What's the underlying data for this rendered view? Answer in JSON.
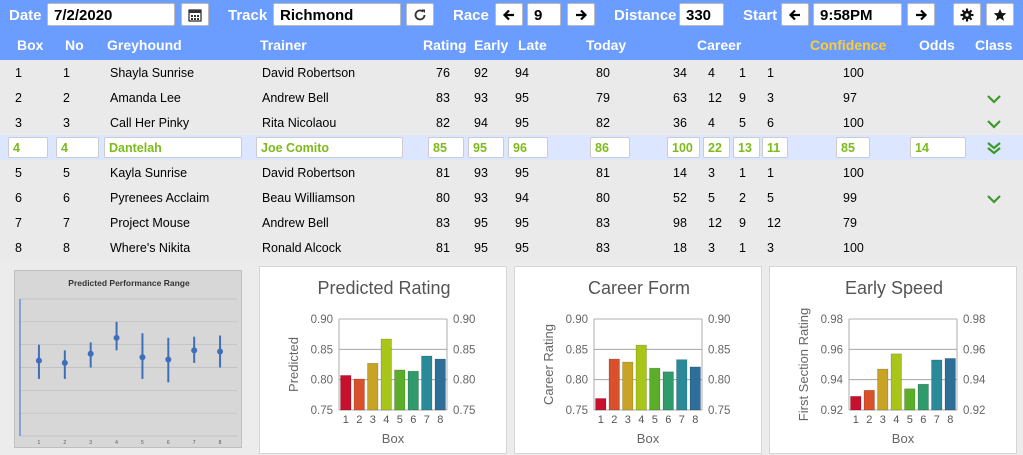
{
  "toolbar": {
    "date_label": "Date",
    "date_value": "7/2/2020",
    "track_label": "Track",
    "track_value": "Richmond",
    "race_label": "Race",
    "race_value": "9",
    "distance_label": "Distance",
    "distance_value": "330",
    "start_label": "Start",
    "start_value": "9:58PM",
    "icons": [
      "calendar-icon",
      "refresh-icon",
      "arrow-left-icon",
      "arrow-right-icon",
      "gear-icon",
      "star-icon"
    ]
  },
  "table": {
    "headers": {
      "box": "Box",
      "no": "No",
      "greyhound": "Greyhound",
      "trainer": "Trainer",
      "rating": "Rating",
      "early": "Early",
      "late": "Late",
      "today": "Today",
      "career": "Career",
      "confidence": "Confidence",
      "odds": "Odds",
      "class": "Class"
    },
    "rows": [
      {
        "box": "1",
        "no": "1",
        "greyhound": "Shayla Sunrise",
        "trainer": "David Robertson",
        "rating": "76",
        "early": "92",
        "late": "94",
        "today": "80",
        "c1": "34",
        "c2": "4",
        "c3": "1",
        "c4": "1",
        "confidence": "100",
        "odds": "",
        "class": ""
      },
      {
        "box": "2",
        "no": "2",
        "greyhound": "Amanda Lee",
        "trainer": "Andrew Bell",
        "rating": "83",
        "early": "93",
        "late": "95",
        "today": "79",
        "c1": "63",
        "c2": "12",
        "c3": "9",
        "c4": "3",
        "confidence": "97",
        "odds": "",
        "class": "chevron"
      },
      {
        "box": "3",
        "no": "3",
        "greyhound": "Call Her Pinky",
        "trainer": "Rita Nicolaou",
        "rating": "82",
        "early": "94",
        "late": "95",
        "today": "82",
        "c1": "36",
        "c2": "4",
        "c3": "5",
        "c4": "6",
        "confidence": "100",
        "odds": "",
        "class": "chevron"
      },
      {
        "box": "4",
        "no": "4",
        "greyhound": "Dantelah",
        "trainer": "Joe Comito",
        "rating": "85",
        "early": "95",
        "late": "96",
        "today": "86",
        "c1": "100",
        "c2": "22",
        "c3": "13",
        "c4": "11",
        "confidence": "85",
        "odds": "14",
        "class": "double-chevron"
      },
      {
        "box": "5",
        "no": "5",
        "greyhound": "Kayla Sunrise",
        "trainer": "David Robertson",
        "rating": "81",
        "early": "93",
        "late": "95",
        "today": "81",
        "c1": "14",
        "c2": "3",
        "c3": "1",
        "c4": "1",
        "confidence": "100",
        "odds": "",
        "class": ""
      },
      {
        "box": "6",
        "no": "6",
        "greyhound": "Pyrenees Acclaim",
        "trainer": "Beau Williamson",
        "rating": "80",
        "early": "93",
        "late": "94",
        "today": "80",
        "c1": "52",
        "c2": "5",
        "c3": "2",
        "c4": "5",
        "confidence": "99",
        "odds": "",
        "class": "chevron"
      },
      {
        "box": "7",
        "no": "7",
        "greyhound": "Project Mouse",
        "trainer": "Andrew Bell",
        "rating": "83",
        "early": "95",
        "late": "95",
        "today": "83",
        "c1": "98",
        "c2": "12",
        "c3": "9",
        "c4": "12",
        "confidence": "79",
        "odds": "",
        "class": ""
      },
      {
        "box": "8",
        "no": "8",
        "greyhound": "Where's Nikita",
        "trainer": "Ronald Alcock",
        "rating": "81",
        "early": "95",
        "late": "95",
        "today": "83",
        "c1": "18",
        "c2": "3",
        "c3": "1",
        "c4": "3",
        "confidence": "100",
        "odds": "",
        "class": ""
      }
    ],
    "selected_row": 3,
    "colors": {
      "header": "#6b9cff",
      "confidence_header": "#ffcc33",
      "selected_text": "#7cbb1a",
      "chevron": "#3d9a2a"
    }
  },
  "chart_data": [
    {
      "type": "scatter",
      "title": "Predicted Performance Range",
      "categories": [
        "1",
        "2",
        "3",
        "4",
        "5",
        "6",
        "7",
        "8"
      ],
      "values": [
        0.806,
        0.804,
        0.812,
        0.826,
        0.809,
        0.807,
        0.815,
        0.814
      ],
      "ranges": [
        [
          0.79,
          0.82
        ],
        [
          0.79,
          0.815
        ],
        [
          0.8,
          0.822
        ],
        [
          0.815,
          0.84
        ],
        [
          0.79,
          0.83
        ],
        [
          0.787,
          0.826
        ],
        [
          0.804,
          0.827
        ],
        [
          0.8,
          0.828
        ]
      ],
      "ylim": [
        0.74,
        0.86
      ],
      "grid": true
    },
    {
      "type": "bar",
      "title": "Predicted Rating",
      "xlabel": "Box",
      "ylabel": "Predicted",
      "categories": [
        "1",
        "2",
        "3",
        "4",
        "5",
        "6",
        "7",
        "8"
      ],
      "values": [
        0.807,
        0.801,
        0.827,
        0.867,
        0.816,
        0.814,
        0.839,
        0.834
      ],
      "ylim": [
        0.75,
        0.9
      ],
      "yticks": [
        "0.90",
        "0.85",
        "0.80",
        "0.75"
      ],
      "grid": true
    },
    {
      "type": "bar",
      "title": "Career Form",
      "xlabel": "Box",
      "ylabel": "Career Rating",
      "categories": [
        "1",
        "2",
        "3",
        "4",
        "5",
        "6",
        "7",
        "8"
      ],
      "values": [
        0.769,
        0.834,
        0.829,
        0.857,
        0.819,
        0.813,
        0.833,
        0.821
      ],
      "ylim": [
        0.75,
        0.9
      ],
      "yticks": [
        "0.90",
        "0.85",
        "0.80",
        "0.75"
      ],
      "grid": true
    },
    {
      "type": "bar",
      "title": "Early Speed",
      "xlabel": "Box",
      "ylabel": "First Section Rating",
      "categories": [
        "1",
        "2",
        "3",
        "4",
        "5",
        "6",
        "7",
        "8"
      ],
      "values": [
        0.929,
        0.933,
        0.947,
        0.957,
        0.934,
        0.937,
        0.953,
        0.954
      ],
      "ylim": [
        0.92,
        0.98
      ],
      "yticks": [
        "0.98",
        "0.96",
        "0.94",
        "0.92"
      ],
      "grid": true
    }
  ],
  "bar_colors": [
    "#c8102e",
    "#d9502a",
    "#c9a326",
    "#a8c51a",
    "#5cae2a",
    "#2f9a6a",
    "#2a8a9a",
    "#2e6f9a"
  ]
}
